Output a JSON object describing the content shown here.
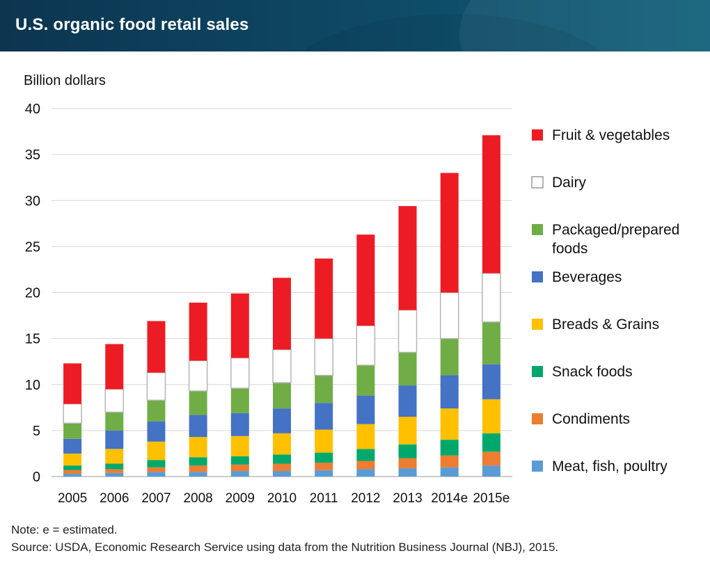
{
  "header": {
    "title": "U.S. organic food retail sales"
  },
  "chart_data": {
    "type": "bar",
    "stacked": true,
    "ylabel": "Billion dollars",
    "ylim": [
      0,
      40
    ],
    "yticks": [
      0,
      5,
      10,
      15,
      20,
      25,
      30,
      35,
      40
    ],
    "categories": [
      "2005",
      "2006",
      "2007",
      "2008",
      "2009",
      "2010",
      "2011",
      "2012",
      "2013",
      "2014e",
      "2015e"
    ],
    "series": [
      {
        "name": "Meat, fish, poultry",
        "color": "#5b9bd5",
        "values": [
          0.3,
          0.4,
          0.5,
          0.5,
          0.6,
          0.6,
          0.7,
          0.8,
          0.9,
          1.0,
          1.2
        ]
      },
      {
        "name": "Condiments",
        "color": "#ed7d31",
        "values": [
          0.4,
          0.4,
          0.5,
          0.7,
          0.7,
          0.8,
          0.8,
          0.9,
          1.1,
          1.3,
          1.5
        ]
      },
      {
        "name": "Snack foods",
        "color": "#00a86b",
        "values": [
          0.5,
          0.6,
          0.8,
          0.9,
          0.9,
          1.0,
          1.1,
          1.3,
          1.5,
          1.7,
          2.0
        ]
      },
      {
        "name": "Breads & Grains",
        "color": "#ffc000",
        "values": [
          1.3,
          1.6,
          2.0,
          2.2,
          2.2,
          2.3,
          2.5,
          2.7,
          3.0,
          3.4,
          3.7
        ]
      },
      {
        "name": "Beverages",
        "color": "#4472c4",
        "values": [
          1.6,
          2.0,
          2.2,
          2.4,
          2.5,
          2.7,
          2.9,
          3.1,
          3.4,
          3.6,
          3.8
        ]
      },
      {
        "name": "Packaged/prepared foods",
        "color": "#70ad47",
        "values": [
          1.7,
          2.0,
          2.3,
          2.6,
          2.7,
          2.8,
          3.0,
          3.3,
          3.6,
          4.0,
          4.6
        ]
      },
      {
        "name": "Dairy",
        "color": "#ffffff",
        "values": [
          2.1,
          2.5,
          3.0,
          3.3,
          3.3,
          3.6,
          4.0,
          4.3,
          4.6,
          5.0,
          5.3
        ]
      },
      {
        "name": "Fruit & vegetables",
        "color": "#ed1c24",
        "values": [
          4.4,
          4.9,
          5.6,
          6.3,
          7.0,
          7.8,
          8.7,
          9.9,
          11.3,
          13.0,
          15.0
        ]
      }
    ],
    "legend_order": [
      "Fruit & vegetables",
      "Dairy",
      "Packaged/prepared foods",
      "Beverages",
      "Breads & Grains",
      "Snack foods",
      "Condiments",
      "Meat, fish, poultry"
    ],
    "legend_placement": "right",
    "grid": true
  },
  "footer": {
    "note": "Note: e = estimated.",
    "source": "Source: USDA, Economic Research Service using data from the Nutrition Business Journal (NBJ), 2015."
  }
}
